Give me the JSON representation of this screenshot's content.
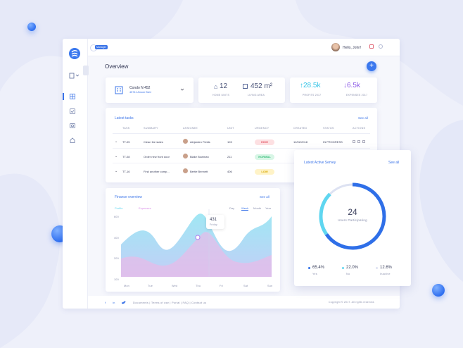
{
  "topbar": {
    "role_badge": "Manager",
    "greeting": "Hello, John!"
  },
  "page_title": "Overview",
  "property": {
    "name": "Condo N 452",
    "address": "45741 Anson Blvd"
  },
  "stats": [
    {
      "value": "12",
      "label": "HOME UNITS"
    },
    {
      "value": "452 m²",
      "label": "LIVING AREA"
    }
  ],
  "finance_stats": [
    {
      "value": "28.5k",
      "label": "PROFITS 2017"
    },
    {
      "value": "6.5k",
      "label": "EXPENSES 2017"
    }
  ],
  "tasks": {
    "title": "Latest tasks",
    "see_all": "See all",
    "columns": [
      "TASK",
      "SUMMARY",
      "ASSIGNEE",
      "UNIT",
      "URGENCY",
      "CREATED",
      "STATUS",
      "ACTIONS"
    ],
    "rows": [
      {
        "task": "TT-05",
        "summary": "Clean the stairs",
        "assignee": "Alejandro Fields",
        "unit": "103",
        "urgency": "HIGH",
        "created": "12/02/2018",
        "status": "IN PROGRESS"
      },
      {
        "task": "TT-08",
        "summary": "Order new front door",
        "assignee": "Blake Bowman",
        "unit": "211",
        "urgency": "NORMAL"
      },
      {
        "task": "TT-16",
        "summary": "Find another comp...",
        "assignee": "Bertie Bennett",
        "unit": "406",
        "urgency": "LOW"
      }
    ]
  },
  "finance": {
    "title": "Finance overview",
    "see_all": "See all",
    "legend": [
      "Profits",
      "Expenses"
    ],
    "tabs": [
      "Day",
      "Week",
      "Month",
      "Year"
    ],
    "active_tab": 1,
    "y_labels": [
      "600",
      "400",
      "200",
      "100"
    ],
    "x_labels": [
      "Mon",
      "Tue",
      "Wed",
      "Thu",
      "Fri",
      "Sat",
      "Sun"
    ],
    "tooltip": {
      "value": "431",
      "label": "Friday"
    }
  },
  "survey": {
    "title": "Latest Active Servey",
    "see_all": "See all",
    "count": "24",
    "count_label": "Users Participating",
    "segments": [
      {
        "value": 65.4,
        "label": "65.4%",
        "name": "Yes",
        "color": "#2f6fe8"
      },
      {
        "value": 22.0,
        "label": "22.0%",
        "name": "No",
        "color": "#5fd6f0"
      },
      {
        "value": 12.6,
        "label": "12.6%",
        "name": "Inactive",
        "color": "#dde2f2"
      }
    ]
  },
  "footer": {
    "links": [
      "Documents",
      "Terms of use",
      "Portal",
      "FAQ",
      "Contact us"
    ],
    "copyright": "Copyright © 2017. All rights reserved."
  }
}
